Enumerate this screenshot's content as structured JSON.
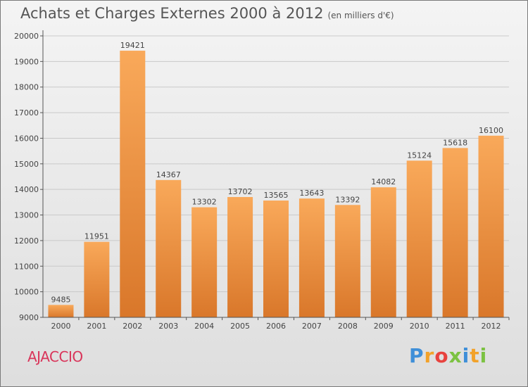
{
  "title": "Achats et Charges Externes 2000 à 2012",
  "subtitle": "(en milliers d'€)",
  "city": "AJACCIO",
  "brand": "Proxiti",
  "colors": {
    "bar_light": "#f9a95a",
    "bar_dark": "#d9772a",
    "axis": "#555555",
    "city": "#d9355a"
  },
  "chart_data": {
    "type": "bar",
    "title": "Achats et Charges Externes 2000 à 2012",
    "subtitle": "(en milliers d'€)",
    "xlabel": "",
    "ylabel": "",
    "categories": [
      "2000",
      "2001",
      "2002",
      "2003",
      "2004",
      "2005",
      "2006",
      "2007",
      "2008",
      "2009",
      "2010",
      "2011",
      "2012"
    ],
    "values": [
      9485,
      11951,
      19421,
      14367,
      13302,
      13702,
      13565,
      13643,
      13392,
      14082,
      15124,
      15618,
      16100
    ],
    "ylim": [
      9000,
      20000
    ],
    "yticks": [
      9000,
      10000,
      11000,
      12000,
      13000,
      14000,
      15000,
      16000,
      17000,
      18000,
      19000,
      20000
    ],
    "grid": true,
    "legend": "none"
  }
}
